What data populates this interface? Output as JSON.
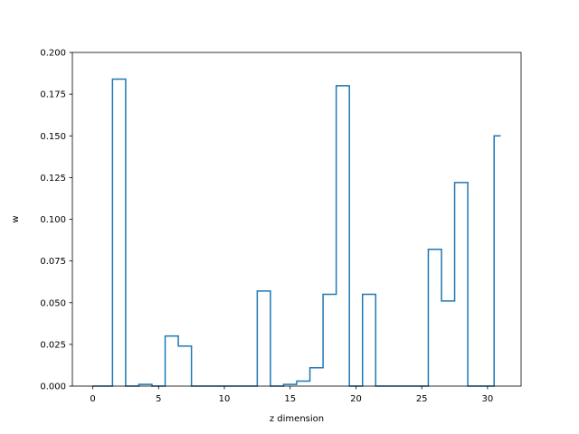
{
  "chart_data": {
    "type": "line",
    "style": "step-histogram",
    "title": "",
    "xlabel": "z dimension",
    "ylabel": "w",
    "xlim": [
      -1.55,
      32.55
    ],
    "ylim": [
      0.0,
      0.2
    ],
    "xticks": [
      0,
      5,
      10,
      15,
      20,
      25,
      30
    ],
    "xtick_labels": [
      "0",
      "5",
      "10",
      "15",
      "20",
      "25",
      "30"
    ],
    "yticks": [
      0.0,
      0.025,
      0.05,
      0.075,
      0.1,
      0.125,
      0.15,
      0.175,
      0.2
    ],
    "ytick_labels": [
      "0.000",
      "0.025",
      "0.050",
      "0.075",
      "0.100",
      "0.125",
      "0.150",
      "0.175",
      "0.200"
    ],
    "grid": false,
    "series": [
      {
        "color": "#1f77b4",
        "x": [
          0,
          1,
          2,
          3,
          4,
          5,
          6,
          7,
          8,
          9,
          10,
          11,
          12,
          13,
          14,
          15,
          16,
          17,
          18,
          19,
          20,
          21,
          22,
          23,
          24,
          25,
          26,
          27,
          28,
          29,
          30,
          31
        ],
        "values": [
          0.0,
          0.0,
          0.184,
          0.0,
          0.001,
          0.0,
          0.03,
          0.024,
          0.0,
          0.0,
          0.0,
          0.0,
          0.0,
          0.057,
          0.0,
          0.001,
          0.003,
          0.011,
          0.055,
          0.18,
          0.0,
          0.055,
          0.0,
          0.0,
          0.0,
          0.0,
          0.082,
          0.051,
          0.122,
          0.0,
          0.0,
          0.15
        ]
      }
    ]
  }
}
